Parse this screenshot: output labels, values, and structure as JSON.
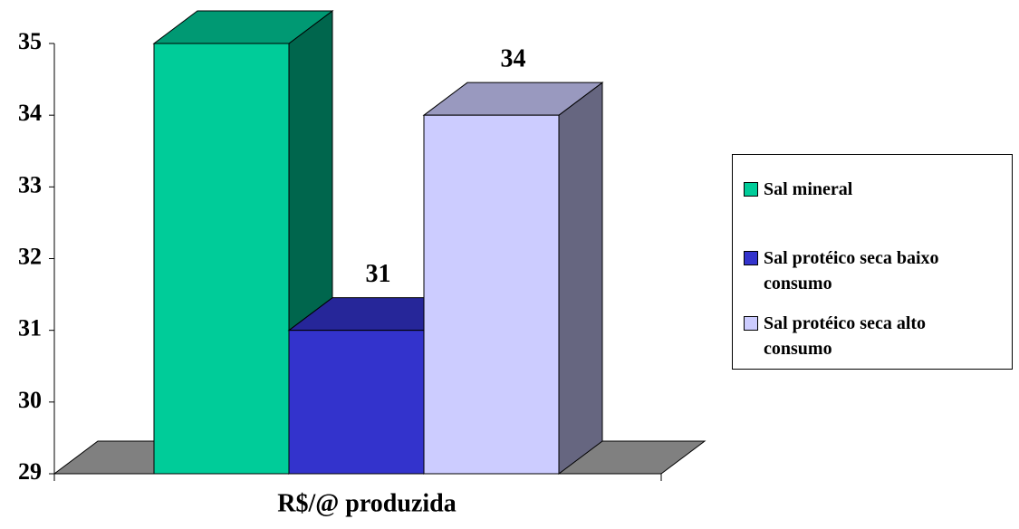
{
  "chart_data": {
    "type": "bar3d",
    "categories": [
      "R$/@ produzida"
    ],
    "series": [
      {
        "name": "Sal mineral",
        "color": "#00CC99",
        "values": [
          35
        ]
      },
      {
        "name": "Sal protéico seca baixo consumo",
        "color": "#3333CC",
        "values": [
          31
        ]
      },
      {
        "name": "Sal protéico seca alto consumo",
        "color": "#CCCCFF",
        "values": [
          34
        ]
      }
    ],
    "ylim": [
      29,
      35
    ],
    "yticks": [
      29,
      30,
      31,
      32,
      33,
      34,
      35
    ],
    "legend": "right"
  }
}
